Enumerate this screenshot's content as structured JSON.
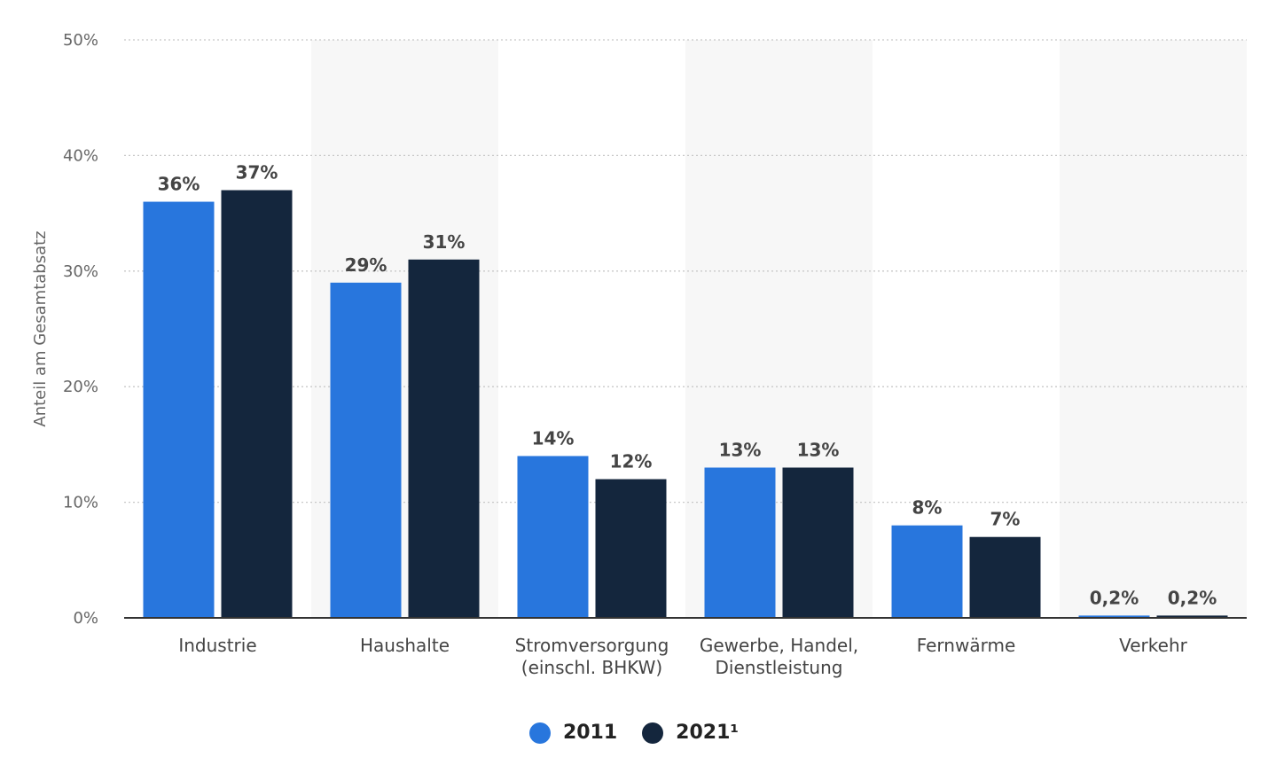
{
  "chart_data": {
    "type": "bar",
    "categories": [
      [
        "Industrie"
      ],
      [
        "Haushalte"
      ],
      [
        "Stromversorgung",
        "(einschl. BHKW)"
      ],
      [
        "Gewerbe, Handel,",
        "Dienstleistung"
      ],
      [
        "Fernwärme"
      ],
      [
        "Verkehr"
      ]
    ],
    "series": [
      {
        "name": "2011",
        "color": "#2876dd",
        "values": [
          36,
          29,
          14,
          13,
          8,
          0.2
        ],
        "labels": [
          "36%",
          "29%",
          "14%",
          "13%",
          "8%",
          "0,2%"
        ]
      },
      {
        "name": "2021¹",
        "color": "#14263d",
        "values": [
          37,
          31,
          12,
          13,
          7,
          0.2
        ],
        "labels": [
          "37%",
          "31%",
          "12%",
          "13%",
          "7%",
          "0,2%"
        ]
      }
    ],
    "ylabel": "Anteil am Gesamtabsatz",
    "ylim": [
      0,
      50
    ],
    "yticks": [
      0,
      10,
      20,
      30,
      40,
      50
    ],
    "ytick_labels": [
      "0%",
      "10%",
      "20%",
      "30%",
      "40%",
      "50%"
    ],
    "grid": true,
    "legend_position": "bottom-center"
  }
}
